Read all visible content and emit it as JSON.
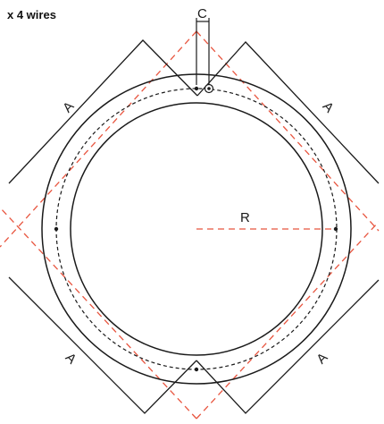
{
  "diagram": {
    "title": "x 4 wires",
    "labels": {
      "a_top_left": "A",
      "a_top_right": "A",
      "a_bottom_left": "A",
      "a_bottom_right": "A",
      "radius": "R",
      "clearance": "C"
    },
    "colors": {
      "line": "#1a1a1a",
      "guide": "#e8553f",
      "background": "#ffffff"
    }
  }
}
